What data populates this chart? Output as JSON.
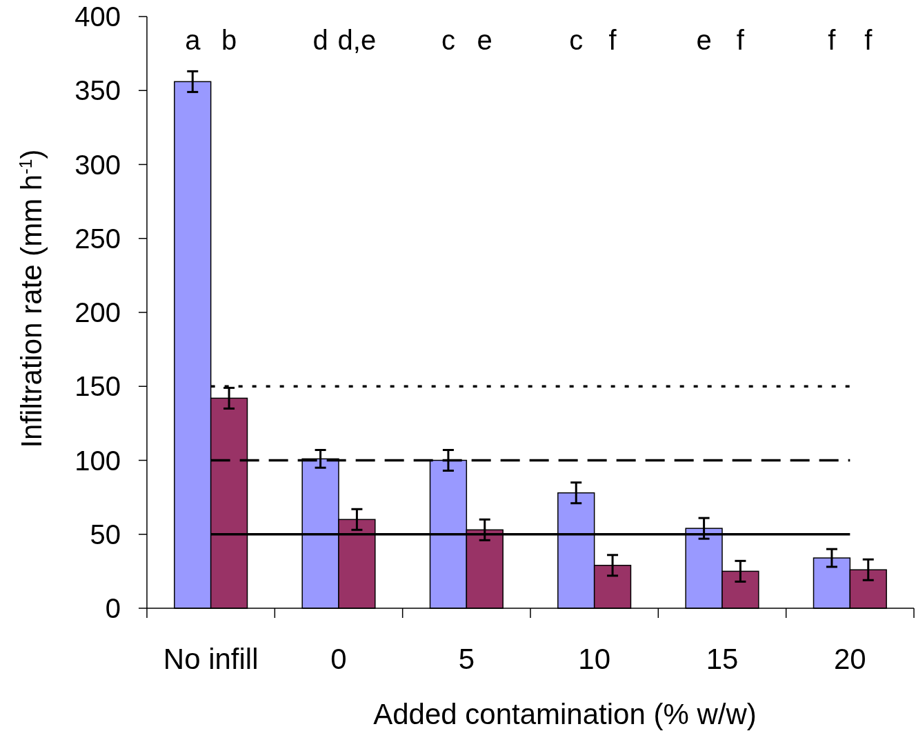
{
  "chart_data": {
    "type": "bar",
    "xlabel": "Added contamination (% w/w)",
    "ylabel": "Infiltration rate (mm h$^{-1}$)",
    "categories": [
      "No infill",
      "0",
      "5",
      "10",
      "15",
      "20"
    ],
    "series": [
      {
        "color": "#9999ff",
        "values": [
          356,
          101,
          100,
          78,
          54,
          34
        ],
        "errors": [
          7,
          6,
          7,
          7,
          7,
          6
        ]
      },
      {
        "color": "#993366",
        "values": [
          142,
          60,
          53,
          29,
          25,
          26
        ],
        "errors": [
          7,
          7,
          7,
          7,
          7,
          7
        ]
      }
    ],
    "ylim": [
      0,
      400
    ],
    "yticks": [
      0,
      50,
      100,
      150,
      200,
      250,
      300,
      350,
      400
    ],
    "grid": false,
    "ref_lines": [
      {
        "axis": "y",
        "value": 150,
        "line_style": "dotted",
        "color": "#000000"
      },
      {
        "axis": "y",
        "value": 100,
        "line_style": "dashed",
        "color": "#000000"
      },
      {
        "axis": "y",
        "value": 50,
        "line_style": "solid",
        "color": "#000000"
      }
    ],
    "annotations": [
      "a",
      "b",
      "d",
      "d,e",
      "c",
      "e",
      "c",
      "f",
      "e",
      "f",
      "f",
      "f"
    ]
  }
}
